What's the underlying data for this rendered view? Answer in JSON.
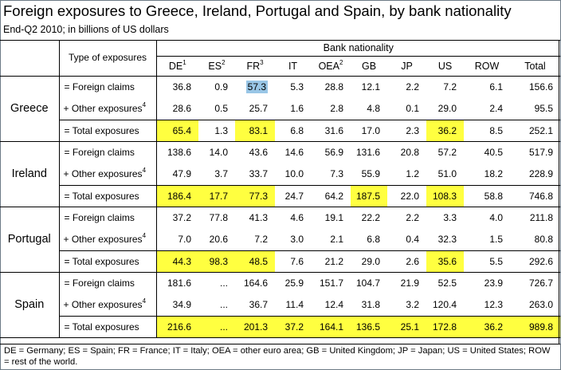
{
  "title": "Foreign exposures to Greece, Ireland, Portugal and Spain, by bank nationality",
  "subtitle": "End-Q2 2010; in billions of US dollars",
  "table": {
    "type_header": "Type of exposures",
    "bank_header": "Bank nationality",
    "columns": [
      {
        "label": "DE",
        "note": "1"
      },
      {
        "label": "ES",
        "note": "2"
      },
      {
        "label": "FR",
        "note": "3"
      },
      {
        "label": "IT",
        "note": ""
      },
      {
        "label": "OEA",
        "note": "2"
      },
      {
        "label": "GB",
        "note": ""
      },
      {
        "label": "JP",
        "note": ""
      },
      {
        "label": "US",
        "note": ""
      },
      {
        "label": "ROW",
        "note": ""
      },
      {
        "label": "Total",
        "note": ""
      }
    ],
    "groups": [
      {
        "country": "Greece",
        "rows": [
          {
            "label": "= Foreign claims",
            "note": "",
            "values": [
              "36.8",
              "0.9",
              "57.3",
              "5.3",
              "28.8",
              "12.1",
              "2.2",
              "7.2",
              "6.1",
              "156.6"
            ],
            "highlight": [
              "",
              "",
              "blue",
              "",
              "",
              "",
              "",
              "",
              "",
              ""
            ]
          },
          {
            "label": "+ Other exposures",
            "note": "4",
            "values": [
              "28.6",
              "0.5",
              "25.7",
              "1.6",
              "2.8",
              "4.8",
              "0.1",
              "29.0",
              "2.4",
              "95.5"
            ],
            "highlight": [
              "",
              "",
              "",
              "",
              "",
              "",
              "",
              "",
              "",
              ""
            ]
          },
          {
            "label": "= Total exposures",
            "note": "",
            "values": [
              "65.4",
              "1.3",
              "83.1",
              "6.8",
              "31.6",
              "17.0",
              "2.3",
              "36.2",
              "8.5",
              "252.1"
            ],
            "highlight": [
              "yellow",
              "",
              "yellow",
              "",
              "",
              "",
              "",
              "yellow",
              "",
              ""
            ]
          }
        ]
      },
      {
        "country": "Ireland",
        "rows": [
          {
            "label": "= Foreign claims",
            "note": "",
            "values": [
              "138.6",
              "14.0",
              "43.6",
              "14.6",
              "56.9",
              "131.6",
              "20.8",
              "57.2",
              "40.5",
              "517.9"
            ],
            "highlight": [
              "",
              "",
              "",
              "",
              "",
              "",
              "",
              "",
              "",
              ""
            ]
          },
          {
            "label": "+ Other exposures",
            "note": "4",
            "values": [
              "47.9",
              "3.7",
              "33.7",
              "10.0",
              "7.3",
              "55.9",
              "1.2",
              "51.0",
              "18.2",
              "228.9"
            ],
            "highlight": [
              "",
              "",
              "",
              "",
              "",
              "",
              "",
              "",
              "",
              ""
            ]
          },
          {
            "label": "= Total exposures",
            "note": "",
            "values": [
              "186.4",
              "17.7",
              "77.3",
              "24.7",
              "64.2",
              "187.5",
              "22.0",
              "108.3",
              "58.8",
              "746.8"
            ],
            "highlight": [
              "yellow",
              "yellow",
              "yellow",
              "",
              "",
              "yellow",
              "",
              "yellow",
              "",
              ""
            ]
          }
        ]
      },
      {
        "country": "Portugal",
        "rows": [
          {
            "label": "= Foreign claims",
            "note": "",
            "values": [
              "37.2",
              "77.8",
              "41.3",
              "4.6",
              "19.1",
              "22.2",
              "2.2",
              "3.3",
              "4.0",
              "211.8"
            ],
            "highlight": [
              "",
              "",
              "",
              "",
              "",
              "",
              "",
              "",
              "",
              ""
            ]
          },
          {
            "label": "+ Other exposures",
            "note": "4",
            "values": [
              "7.0",
              "20.6",
              "7.2",
              "3.0",
              "2.1",
              "6.8",
              "0.4",
              "32.3",
              "1.5",
              "80.8"
            ],
            "highlight": [
              "",
              "",
              "",
              "",
              "",
              "",
              "",
              "",
              "",
              ""
            ]
          },
          {
            "label": "= Total exposures",
            "note": "",
            "values": [
              "44.3",
              "98.3",
              "48.5",
              "7.6",
              "21.2",
              "29.0",
              "2.6",
              "35.6",
              "5.5",
              "292.6"
            ],
            "highlight": [
              "yellow",
              "yellow",
              "yellow",
              "",
              "",
              "",
              "",
              "yellow",
              "",
              ""
            ]
          }
        ]
      },
      {
        "country": "Spain",
        "rows": [
          {
            "label": "= Foreign claims",
            "note": "",
            "values": [
              "181.6",
              "...",
              "164.6",
              "25.9",
              "151.7",
              "104.7",
              "21.9",
              "52.5",
              "23.9",
              "726.7"
            ],
            "highlight": [
              "",
              "",
              "",
              "",
              "",
              "",
              "",
              "",
              "",
              ""
            ]
          },
          {
            "label": "+ Other exposures",
            "note": "4",
            "values": [
              "34.9",
              "...",
              "36.7",
              "11.4",
              "12.4",
              "31.8",
              "3.2",
              "120.4",
              "12.3",
              "263.0"
            ],
            "highlight": [
              "",
              "",
              "",
              "",
              "",
              "",
              "",
              "",
              "",
              ""
            ]
          },
          {
            "label": "= Total exposures",
            "note": "",
            "values": [
              "216.6",
              "...",
              "201.3",
              "37.2",
              "164.1",
              "136.5",
              "25.1",
              "172.8",
              "36.2",
              "989.8"
            ],
            "highlight": [
              "yellow",
              "yellow",
              "yellow",
              "yellow",
              "yellow",
              "yellow",
              "yellow",
              "yellow",
              "yellow",
              "yellow"
            ]
          }
        ]
      }
    ]
  },
  "footnote": "DE = Germany; ES = Spain; FR = France; IT = Italy; OEA = other euro area; GB = United Kingdom; JP = Japan; US = United States; ROW = rest of the world.",
  "colors": {
    "highlight_yellow": "#ffff40",
    "highlight_blue": "#99c6e6",
    "border": "#000000"
  }
}
